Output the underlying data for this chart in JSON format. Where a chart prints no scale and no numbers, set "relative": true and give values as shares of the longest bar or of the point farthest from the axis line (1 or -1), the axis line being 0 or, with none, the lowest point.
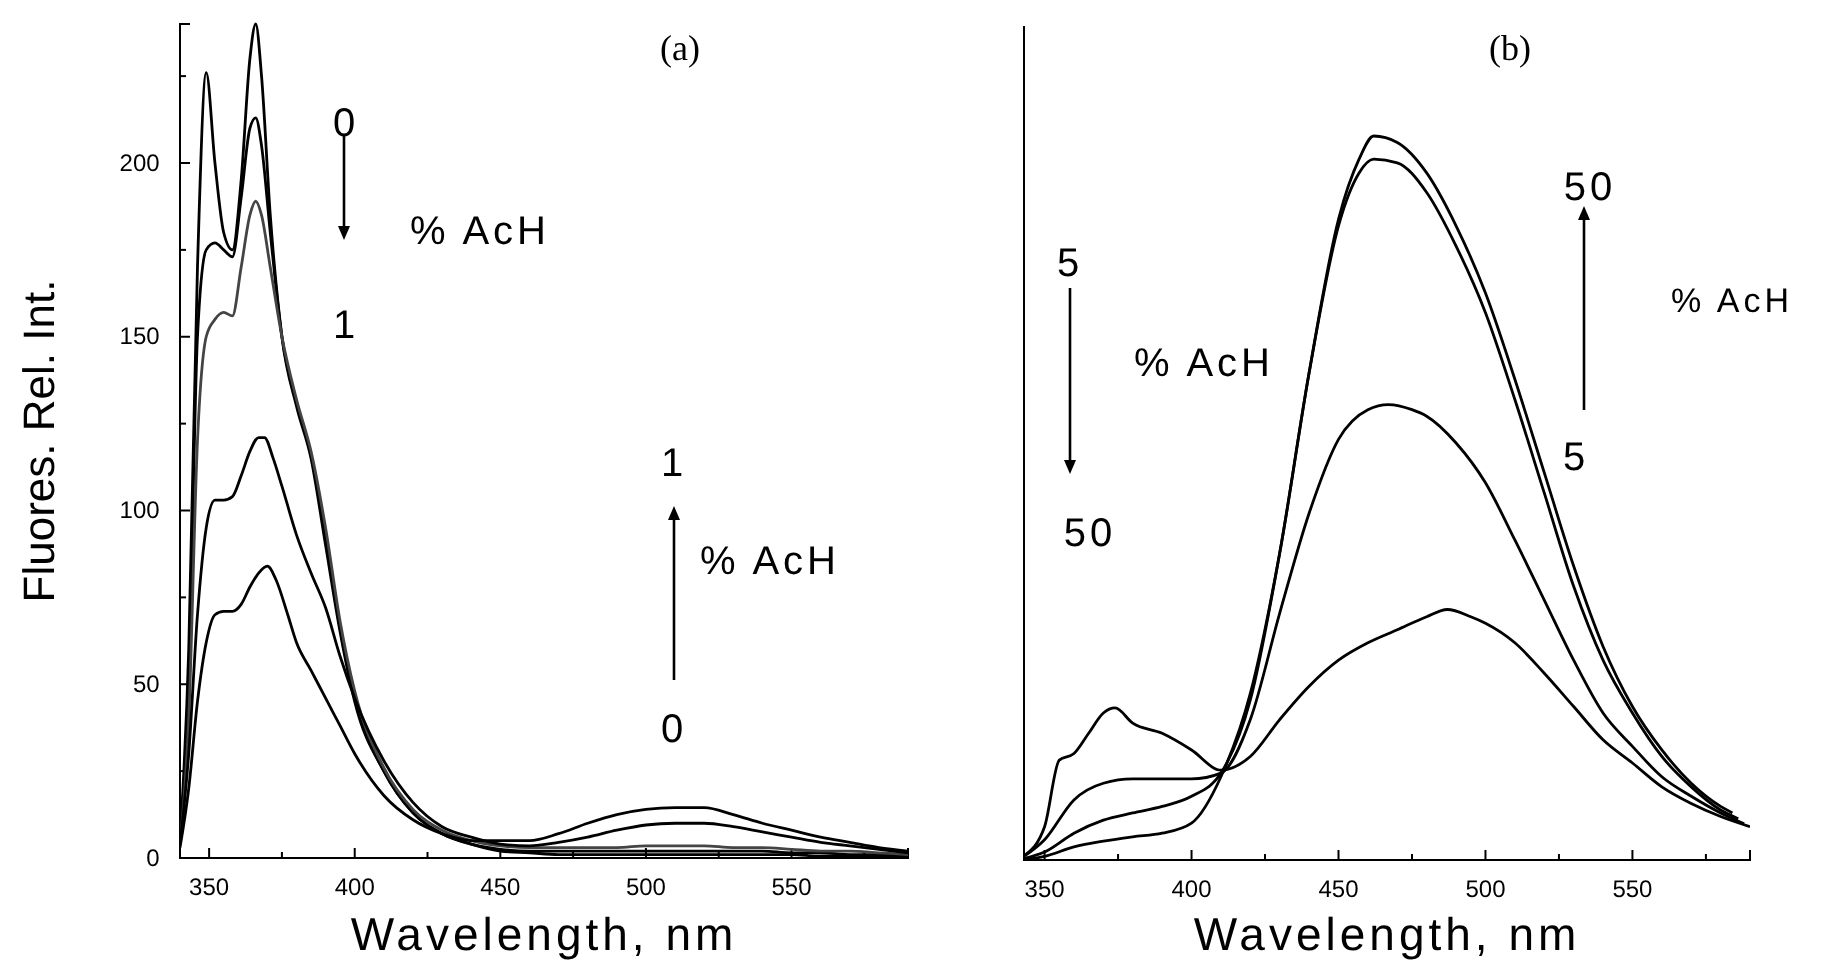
{
  "chart_data": [
    {
      "type": "line",
      "xlabel": "Wavelength, nm",
      "ylabel": "Fluores. Rel. Int.",
      "xlim": [
        340,
        590
      ],
      "ylim": [
        0,
        240
      ],
      "xticks": [
        350,
        {
          "value": 375,
          "label": null
        },
        400,
        {
          "value": 425,
          "label": null
        },
        450,
        {
          "value": 475,
          "label": null
        },
        500,
        {
          "value": 525,
          "label": null
        },
        550,
        {
          "value": 575,
          "label": null
        }
      ],
      "yticks": [
        0,
        {
          "value": 25,
          "label": null
        },
        50,
        {
          "value": 75,
          "label": null
        },
        100,
        {
          "value": 125,
          "label": null
        },
        150,
        {
          "value": 175,
          "label": null
        },
        200,
        {
          "value": 225,
          "label": null
        }
      ],
      "annotations": [
        "(a)",
        "0",
        "% AcH",
        "1",
        "1",
        "% AcH",
        "0"
      ],
      "series": [
        {
          "color": "#000000",
          "x": [
            340,
            343,
            346,
            349,
            352,
            355,
            358,
            361,
            364,
            366,
            368,
            371,
            375,
            380,
            385,
            390,
            395,
            400,
            410,
            420,
            430,
            440,
            450,
            460,
            470,
            480,
            490,
            500,
            510,
            520,
            530,
            540,
            550,
            560,
            570,
            580,
            590
          ],
          "values": [
            5,
            60,
            170,
            226,
            200,
            180,
            175,
            195,
            230,
            240,
            225,
            185,
            150,
            130,
            115,
            90,
            65,
            45,
            25,
            13,
            7,
            4,
            2,
            1.5,
            1,
            1,
            1,
            1,
            1,
            1,
            1,
            1,
            1,
            0.5,
            0.5,
            0.5,
            0.5
          ]
        },
        {
          "color": "#000000",
          "x": [
            340,
            343,
            346,
            349,
            352,
            355,
            358,
            361,
            364,
            366,
            368,
            371,
            375,
            380,
            385,
            390,
            395,
            400,
            410,
            420,
            430,
            440,
            450,
            460,
            470,
            480,
            490,
            500,
            510,
            520,
            530,
            540,
            550,
            560,
            570,
            580,
            590
          ],
          "values": [
            4,
            50,
            150,
            175,
            177,
            175,
            173,
            190,
            210,
            213,
            205,
            180,
            150,
            131,
            116,
            92,
            66,
            46,
            25,
            13,
            7,
            4,
            2.5,
            2,
            2,
            2,
            2,
            2,
            2,
            2,
            2,
            2,
            1.5,
            1.5,
            1,
            1,
            1
          ]
        },
        {
          "color": "#444444",
          "x": [
            340,
            343,
            346,
            349,
            352,
            355,
            358,
            361,
            364,
            366,
            368,
            371,
            375,
            380,
            385,
            390,
            395,
            400,
            410,
            420,
            430,
            440,
            450,
            460,
            470,
            480,
            490,
            500,
            510,
            520,
            530,
            540,
            550,
            560,
            570,
            580,
            590
          ],
          "values": [
            4,
            40,
            120,
            150,
            155,
            157,
            156,
            170,
            185,
            189,
            185,
            170,
            150,
            132,
            117,
            95,
            68,
            48,
            26,
            14,
            8,
            5,
            3.5,
            3,
            3,
            3,
            3,
            3.5,
            3.5,
            3.5,
            3,
            3,
            2.5,
            2,
            2,
            1.5,
            1
          ]
        },
        {
          "color": "#000000",
          "x": [
            340,
            343,
            346,
            349,
            352,
            355,
            358,
            361,
            364,
            367,
            369,
            372,
            375,
            380,
            385,
            390,
            395,
            400,
            410,
            420,
            430,
            440,
            450,
            460,
            470,
            480,
            490,
            500,
            510,
            520,
            530,
            540,
            550,
            560,
            570,
            580,
            590
          ],
          "values": [
            4,
            30,
            70,
            95,
            103,
            103,
            104,
            110,
            117,
            121,
            121,
            115,
            107,
            93,
            82,
            72,
            58,
            46,
            28,
            16,
            9,
            6,
            4,
            3.5,
            4.5,
            6,
            8,
            9.5,
            10,
            10,
            9,
            7.5,
            6,
            4.5,
            3.5,
            2.5,
            1.5
          ]
        },
        {
          "color": "#000000",
          "x": [
            340,
            343,
            346,
            349,
            352,
            355,
            358,
            361,
            364,
            367,
            370,
            373,
            377,
            380,
            385,
            390,
            395,
            400,
            410,
            420,
            430,
            440,
            450,
            460,
            470,
            480,
            490,
            500,
            510,
            520,
            530,
            540,
            550,
            560,
            570,
            580,
            590
          ],
          "values": [
            3,
            20,
            45,
            62,
            70,
            71,
            71,
            73,
            78,
            82,
            84,
            80,
            70,
            62,
            54,
            46,
            38,
            30,
            18,
            11,
            7,
            5,
            5,
            5,
            7,
            10,
            12.5,
            14,
            14.5,
            14.5,
            12.5,
            10,
            8,
            6,
            4.5,
            3,
            2
          ]
        }
      ]
    },
    {
      "type": "line",
      "relative": true,
      "xlabel": "Wavelength, nm",
      "xlim": [
        343,
        590
      ],
      "xticks": [
        350,
        {
          "value": 375,
          "label": null
        },
        400,
        {
          "value": 425,
          "label": null
        },
        450,
        {
          "value": 475,
          "label": null
        },
        500,
        {
          "value": 525,
          "label": null
        },
        550,
        {
          "value": 575,
          "label": null
        }
      ],
      "annotations": [
        "(b)",
        "5",
        "% AcH",
        "50",
        "50",
        "% AcH",
        "5"
      ],
      "series": [
        {
          "color": "#000000",
          "x": [
            343,
            350,
            355,
            360,
            365,
            370,
            374,
            380,
            390,
            400,
            410,
            420,
            430,
            440,
            450,
            460,
            470,
            480,
            487,
            495,
            500,
            510,
            520,
            530,
            540,
            550,
            560,
            570,
            580,
            590
          ],
          "values": [
            0.006,
            0.046,
            0.138,
            0.147,
            0.175,
            0.203,
            0.21,
            0.189,
            0.175,
            0.152,
            0.124,
            0.143,
            0.194,
            0.24,
            0.276,
            0.3,
            0.318,
            0.336,
            0.346,
            0.336,
            0.327,
            0.3,
            0.258,
            0.212,
            0.166,
            0.134,
            0.101,
            0.078,
            0.06,
            0.046
          ]
        },
        {
          "color": "#000000",
          "x": [
            343,
            350,
            360,
            370,
            380,
            390,
            400,
            410,
            420,
            430,
            440,
            450,
            460,
            467,
            475,
            480,
            490,
            500,
            510,
            520,
            530,
            540,
            550,
            560,
            570,
            580,
            588
          ],
          "values": [
            0.005,
            0.028,
            0.083,
            0.106,
            0.112,
            0.112,
            0.112,
            0.12,
            0.194,
            0.341,
            0.479,
            0.581,
            0.622,
            0.629,
            0.622,
            0.613,
            0.576,
            0.521,
            0.442,
            0.359,
            0.276,
            0.203,
            0.157,
            0.115,
            0.088,
            0.065,
            0.05
          ]
        },
        {
          "color": "#000000",
          "x": [
            343,
            350,
            360,
            370,
            380,
            390,
            400,
            410,
            420,
            430,
            440,
            450,
            457,
            462,
            470,
            480,
            490,
            500,
            510,
            520,
            530,
            540,
            550,
            560,
            570,
            580,
            586
          ],
          "values": [
            0.002,
            0.011,
            0.037,
            0.055,
            0.065,
            0.074,
            0.088,
            0.12,
            0.221,
            0.424,
            0.673,
            0.876,
            0.949,
            0.968,
            0.963,
            0.922,
            0.848,
            0.756,
            0.636,
            0.507,
            0.378,
            0.276,
            0.203,
            0.143,
            0.101,
            0.069,
            0.057
          ]
        },
        {
          "color": "#000000",
          "x": [
            343,
            350,
            360,
            370,
            380,
            390,
            400,
            410,
            420,
            430,
            440,
            450,
            457,
            462,
            470,
            480,
            490,
            500,
            510,
            520,
            530,
            540,
            550,
            560,
            570,
            580,
            584
          ],
          "values": [
            0,
            0.005,
            0.018,
            0.026,
            0.032,
            0.037,
            0.051,
            0.115,
            0.23,
            0.424,
            0.673,
            0.885,
            0.968,
            1,
            0.991,
            0.949,
            0.876,
            0.783,
            0.664,
            0.535,
            0.406,
            0.295,
            0.212,
            0.152,
            0.106,
            0.074,
            0.065
          ]
        }
      ]
    }
  ]
}
